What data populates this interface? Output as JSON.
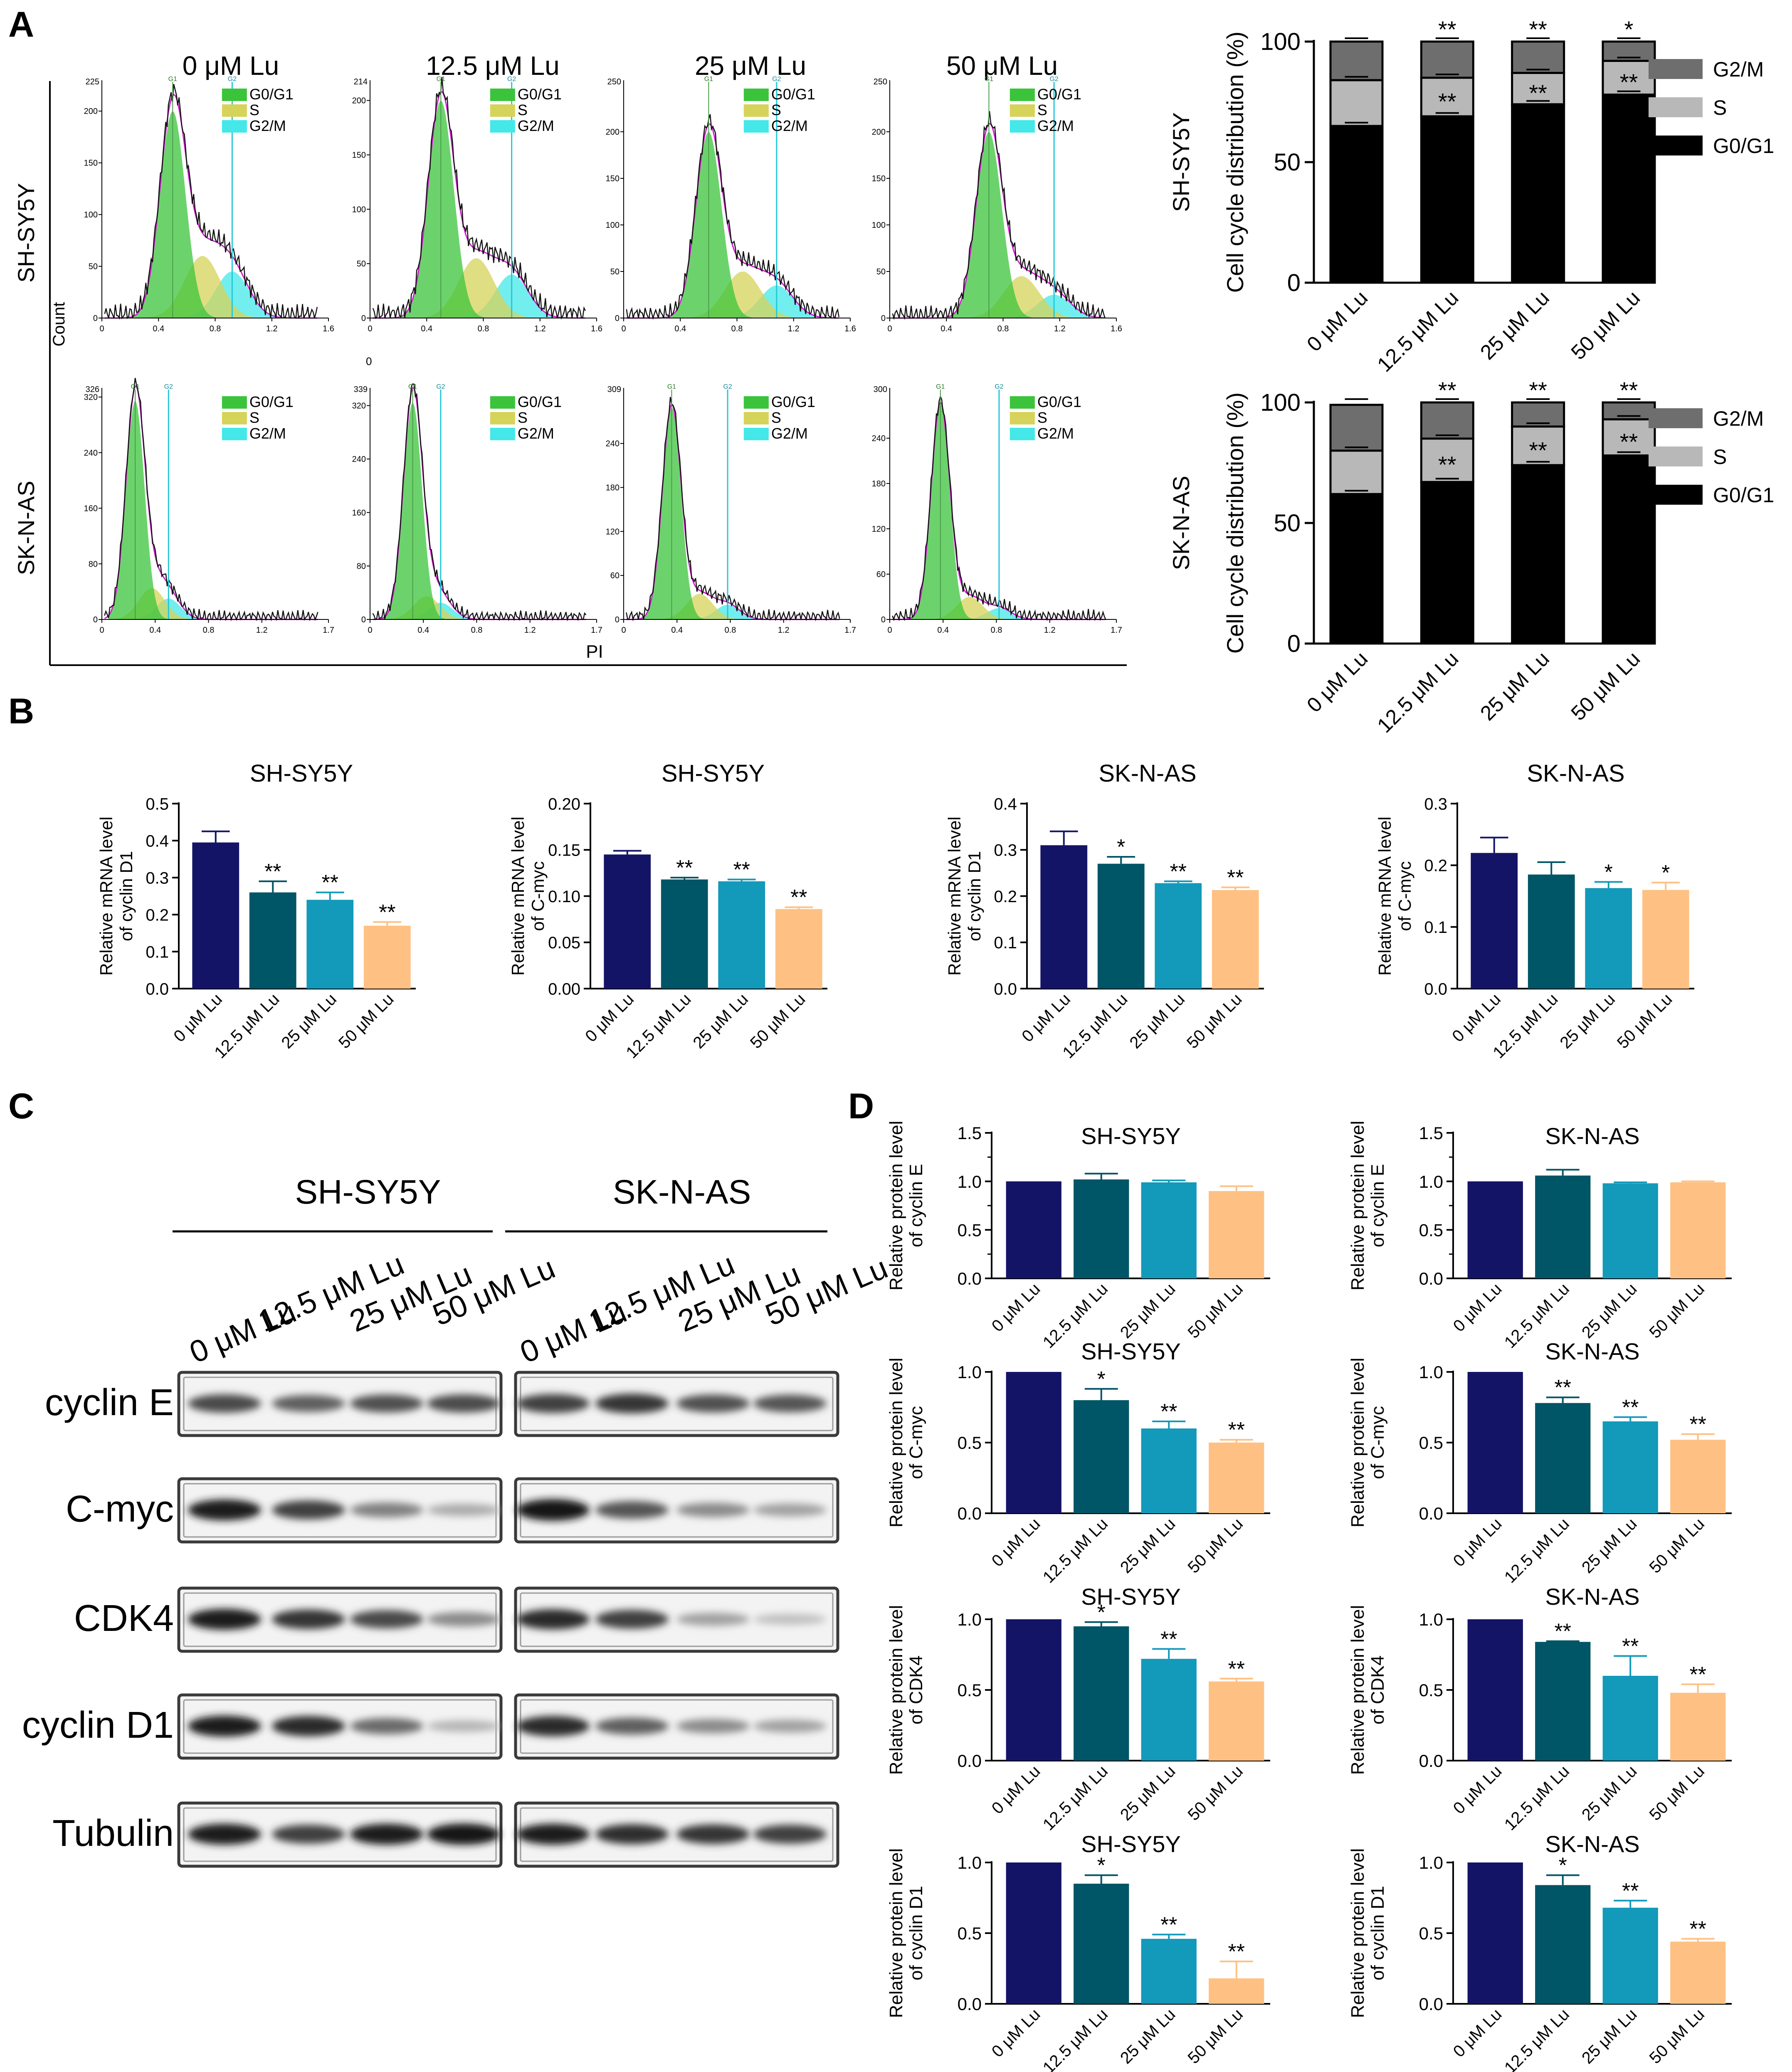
{
  "figure": {
    "panel_labels": [
      "A",
      "B",
      "C",
      "D"
    ],
    "conditions": [
      "0 μM Lu",
      "12.5 μM Lu",
      "25 μM Lu",
      "50 μM Lu"
    ],
    "colors": {
      "c0": "#141467",
      "c1": "#005566",
      "c2": "#1399ba",
      "c3": "#fec183",
      "g2m": "#6e6e6e",
      "s": "#b8b8b8",
      "g0g1": "#000000"
    }
  },
  "panel_a": {
    "cell_lines": [
      "SH-SY5Y",
      "SK-N-AS"
    ],
    "histogram_titles": [
      "0 μM Lu",
      "12.5 μM Lu",
      "25 μM Lu",
      "50 μM Lu"
    ],
    "legend": [
      "G0/G1",
      "S",
      "G2/M"
    ],
    "peak_labels": [
      "G1",
      "G2"
    ],
    "count_label": "Count",
    "pi_label": "PI",
    "stray_label": "0",
    "row1_xticks": [
      "0",
      "0.4",
      "0.8",
      "1.2",
      "1.6"
    ],
    "row2_xticks": [
      "0",
      "0.4",
      "0.8",
      "1.2",
      "1.7"
    ],
    "row1_yticks": [
      {
        "max": "225",
        "ticks": [
          "0",
          "50",
          "100",
          "150",
          "200"
        ]
      },
      {
        "max": "214",
        "ticks": [
          "0",
          "50",
          "100",
          "150",
          "200"
        ]
      },
      {
        "max": "250",
        "ticks": [
          "0",
          "50",
          "100",
          "150",
          "200"
        ]
      },
      {
        "max": "250",
        "ticks": [
          "0",
          "50",
          "100",
          "150",
          "200"
        ]
      }
    ],
    "row2_yticks": [
      {
        "max": "326",
        "ticks": [
          "0",
          "80",
          "160",
          "240",
          "320"
        ]
      },
      {
        "max": "339",
        "ticks": [
          "0",
          "80",
          "160",
          "240",
          "320"
        ]
      },
      {
        "max": "309",
        "ticks": [
          "0",
          "60",
          "120",
          "180",
          "240"
        ]
      },
      {
        "max": "300",
        "ticks": [
          "0",
          "60",
          "120",
          "180",
          "240"
        ]
      }
    ]
  },
  "chart_data": [
    {
      "id": "cc_shsy5y",
      "type": "bar",
      "stacked": true,
      "title": "SH-SY5Y",
      "ylabel": "Cell cycle distribution (%)",
      "categories": [
        "0 μM Lu",
        "12.5 μM Lu",
        "25 μM Lu",
        "50 μM Lu"
      ],
      "series": [
        {
          "name": "G0/G1",
          "values": [
            65,
            69,
            74,
            78
          ]
        },
        {
          "name": "S",
          "values": [
            19,
            16,
            13,
            14
          ]
        },
        {
          "name": "G2/M",
          "values": [
            16,
            15,
            13,
            8
          ]
        }
      ],
      "upper_sig": [
        "",
        "**",
        "**",
        "*"
      ],
      "lower_sig": [
        "",
        "**",
        "**",
        "**"
      ],
      "ylim": [
        0,
        100
      ],
      "yticks": [
        "0",
        "50",
        "100"
      ]
    },
    {
      "id": "cc_sknas",
      "type": "bar",
      "stacked": true,
      "title": "SK-N-AS",
      "ylabel": "Cell cycle distribution (%)",
      "categories": [
        "0 μM Lu",
        "12.5 μM Lu",
        "25 μM Lu",
        "50 μM Lu"
      ],
      "series": [
        {
          "name": "G0/G1",
          "values": [
            62,
            67,
            74,
            78
          ]
        },
        {
          "name": "S",
          "values": [
            18,
            18,
            16,
            15
          ]
        },
        {
          "name": "G2/M",
          "values": [
            19,
            15,
            10,
            7
          ]
        }
      ],
      "upper_sig": [
        "",
        "**",
        "**",
        "**"
      ],
      "lower_sig": [
        "",
        "**",
        "**",
        "**"
      ],
      "ylim": [
        0,
        100
      ],
      "yticks": [
        "0",
        "50",
        "100"
      ]
    },
    {
      "id": "b1",
      "type": "bar",
      "title": "SH-SY5Y",
      "ylabel": [
        "Relative mRNA level",
        "of cyclin D1"
      ],
      "categories": [
        "0 μM Lu",
        "12.5 μM Lu",
        "25 μM Lu",
        "50 μM Lu"
      ],
      "values": [
        0.395,
        0.26,
        0.24,
        0.17
      ],
      "errors": [
        0.03,
        0.03,
        0.02,
        0.01
      ],
      "sig": [
        "",
        "**",
        "**",
        "**"
      ],
      "ylim": [
        0,
        0.5
      ],
      "yticks": [
        "0.0",
        "0.1",
        "0.2",
        "0.3",
        "0.4",
        "0.5"
      ]
    },
    {
      "id": "b2",
      "type": "bar",
      "title": "SH-SY5Y",
      "ylabel": [
        "Relative mRNA level",
        "of C-myc"
      ],
      "categories": [
        "0 μM Lu",
        "12.5 μM Lu",
        "25 μM Lu",
        "50 μM Lu"
      ],
      "values": [
        0.145,
        0.118,
        0.116,
        0.086
      ],
      "errors": [
        0.004,
        0.002,
        0.002,
        0.002
      ],
      "sig": [
        "",
        "**",
        "**",
        "**"
      ],
      "ylim": [
        0,
        0.2
      ],
      "yticks": [
        "0.00",
        "0.05",
        "0.10",
        "0.15",
        "0.20"
      ]
    },
    {
      "id": "b3",
      "type": "bar",
      "title": "SK-N-AS",
      "ylabel": [
        "Relative mRNA level",
        "of cyclin D1"
      ],
      "categories": [
        "0 μM Lu",
        "12.5 μM Lu",
        "25 μM Lu",
        "50 μM Lu"
      ],
      "values": [
        0.31,
        0.27,
        0.228,
        0.213
      ],
      "errors": [
        0.03,
        0.015,
        0.004,
        0.006
      ],
      "sig": [
        "",
        "*",
        "**",
        "**"
      ],
      "ylim": [
        0,
        0.4
      ],
      "yticks": [
        "0.0",
        "0.1",
        "0.2",
        "0.3",
        "0.4"
      ]
    },
    {
      "id": "b4",
      "type": "bar",
      "title": "SK-N-AS",
      "ylabel": [
        "Relative mRNA level",
        "of C-myc"
      ],
      "categories": [
        "0 μM Lu",
        "12.5 μM Lu",
        "25 μM Lu",
        "50 μM Lu"
      ],
      "values": [
        0.22,
        0.185,
        0.163,
        0.16
      ],
      "errors": [
        0.025,
        0.02,
        0.01,
        0.012
      ],
      "sig": [
        "",
        "",
        "*",
        "*"
      ],
      "ylim": [
        0,
        0.3
      ],
      "yticks": [
        "0.0",
        "0.1",
        "0.2",
        "0.3"
      ]
    },
    {
      "id": "d11",
      "type": "bar",
      "title": "SH-SY5Y",
      "ylabel": [
        "Relative protein level",
        "of cyclin E"
      ],
      "categories": [
        "0 μM Lu",
        "12.5 μM Lu",
        "25 μM Lu",
        "50 μM Lu"
      ],
      "values": [
        1.0,
        1.02,
        0.99,
        0.9
      ],
      "errors": [
        0,
        0.06,
        0.02,
        0.05
      ],
      "sig": [
        "",
        "",
        "",
        ""
      ],
      "ylim": [
        0,
        1.5
      ],
      "yticks": [
        "0.0",
        "0.5",
        "1.0",
        "1.5"
      ],
      "minor_ticks": true
    },
    {
      "id": "d12",
      "type": "bar",
      "title": "SK-N-AS",
      "ylabel": [
        "Relative protein level",
        "of cyclin E"
      ],
      "categories": [
        "0 μM Lu",
        "12.5 μM Lu",
        "25 μM Lu",
        "50 μM Lu"
      ],
      "values": [
        1.0,
        1.06,
        0.98,
        0.99
      ],
      "errors": [
        0,
        0.06,
        0.01,
        0.01
      ],
      "sig": [
        "",
        "",
        "",
        ""
      ],
      "ylim": [
        0,
        1.5
      ],
      "yticks": [
        "0.0",
        "0.5",
        "1.0",
        "1.5"
      ],
      "minor_ticks": true
    },
    {
      "id": "d21",
      "type": "bar",
      "title": "SH-SY5Y",
      "ylabel": [
        "Relative protein level",
        "of C-myc"
      ],
      "categories": [
        "0 μM Lu",
        "12.5 μM Lu",
        "25 μM Lu",
        "50 μM Lu"
      ],
      "values": [
        1.0,
        0.8,
        0.6,
        0.5
      ],
      "errors": [
        0,
        0.08,
        0.05,
        0.02
      ],
      "sig": [
        "",
        "*",
        "**",
        "**"
      ],
      "ylim": [
        0,
        1.0
      ],
      "yticks": [
        "0.0",
        "0.5",
        "1.0"
      ]
    },
    {
      "id": "d22",
      "type": "bar",
      "title": "SK-N-AS",
      "ylabel": [
        "Relative protein level",
        "of C-myc"
      ],
      "categories": [
        "0 μM Lu",
        "12.5 μM Lu",
        "25 μM Lu",
        "50 μM Lu"
      ],
      "values": [
        1.0,
        0.78,
        0.65,
        0.52
      ],
      "errors": [
        0,
        0.04,
        0.03,
        0.04
      ],
      "sig": [
        "",
        "**",
        "**",
        "**"
      ],
      "ylim": [
        0,
        1.0
      ],
      "yticks": [
        "0.0",
        "0.5",
        "1.0"
      ]
    },
    {
      "id": "d31",
      "type": "bar",
      "title": "SH-SY5Y",
      "ylabel": [
        "Relative protein level",
        "of CDK4"
      ],
      "categories": [
        "0 μM Lu",
        "12.5 μM Lu",
        "25 μM Lu",
        "50 μM Lu"
      ],
      "values": [
        1.0,
        0.95,
        0.72,
        0.56
      ],
      "errors": [
        0,
        0.03,
        0.07,
        0.02
      ],
      "sig": [
        "",
        "*",
        "**",
        "**"
      ],
      "ylim": [
        0,
        1.0
      ],
      "yticks": [
        "0.0",
        "0.5",
        "1.0"
      ]
    },
    {
      "id": "d32",
      "type": "bar",
      "title": "SK-N-AS",
      "ylabel": [
        "Relative protein level",
        "of CDK4"
      ],
      "categories": [
        "0 μM Lu",
        "12.5 μM Lu",
        "25 μM Lu",
        "50 μM Lu"
      ],
      "values": [
        1.0,
        0.84,
        0.6,
        0.48
      ],
      "errors": [
        0,
        0.005,
        0.14,
        0.06
      ],
      "sig": [
        "",
        "**",
        "**",
        "**"
      ],
      "ylim": [
        0,
        1.0
      ],
      "yticks": [
        "0.0",
        "0.5",
        "1.0"
      ]
    },
    {
      "id": "d41",
      "type": "bar",
      "title": "SH-SY5Y",
      "ylabel": [
        "Relative protein level",
        "of cyclin D1"
      ],
      "categories": [
        "0 μM Lu",
        "12.5 μM Lu",
        "25 μM Lu",
        "50 μM Lu"
      ],
      "values": [
        1.0,
        0.85,
        0.46,
        0.18
      ],
      "errors": [
        0,
        0.06,
        0.03,
        0.12
      ],
      "sig": [
        "",
        "*",
        "**",
        "**"
      ],
      "ylim": [
        0,
        1.0
      ],
      "yticks": [
        "0.0",
        "0.5",
        "1.0"
      ]
    },
    {
      "id": "d42",
      "type": "bar",
      "title": "SK-N-AS",
      "ylabel": [
        "Relative protein level",
        "of cyclin D1"
      ],
      "categories": [
        "0 μM Lu",
        "12.5 μM Lu",
        "25 μM Lu",
        "50 μM Lu"
      ],
      "values": [
        1.0,
        0.84,
        0.68,
        0.44
      ],
      "errors": [
        0,
        0.07,
        0.05,
        0.02
      ],
      "sig": [
        "",
        "*",
        "**",
        "**"
      ],
      "ylim": [
        0,
        1.0
      ],
      "yticks": [
        "0.0",
        "0.5",
        "1.0"
      ]
    }
  ],
  "panel_c": {
    "cell_lines": [
      "SH-SY5Y",
      "SK-N-AS"
    ],
    "lane_labels": [
      "0 μM Lu",
      "12.5 μM Lu",
      "25 μM Lu",
      "50 μM Lu"
    ],
    "proteins": [
      {
        "name": "cyclin E",
        "sh": [
          0.75,
          0.65,
          0.72,
          0.74
        ],
        "sk": [
          0.8,
          0.85,
          0.72,
          0.7
        ]
      },
      {
        "name": "C-myc",
        "sh": [
          0.95,
          0.8,
          0.5,
          0.3
        ],
        "sk": [
          1.0,
          0.7,
          0.45,
          0.35
        ]
      },
      {
        "name": "CDK4",
        "sh": [
          0.95,
          0.85,
          0.75,
          0.45
        ],
        "sk": [
          0.9,
          0.8,
          0.35,
          0.2
        ]
      },
      {
        "name": "cyclin D1",
        "sh": [
          0.95,
          0.9,
          0.6,
          0.25
        ],
        "sk": [
          0.9,
          0.65,
          0.45,
          0.35
        ]
      },
      {
        "name": "Tubulin",
        "sh": [
          0.95,
          0.8,
          0.95,
          0.98
        ],
        "sk": [
          0.95,
          0.88,
          0.85,
          0.8
        ]
      }
    ]
  }
}
